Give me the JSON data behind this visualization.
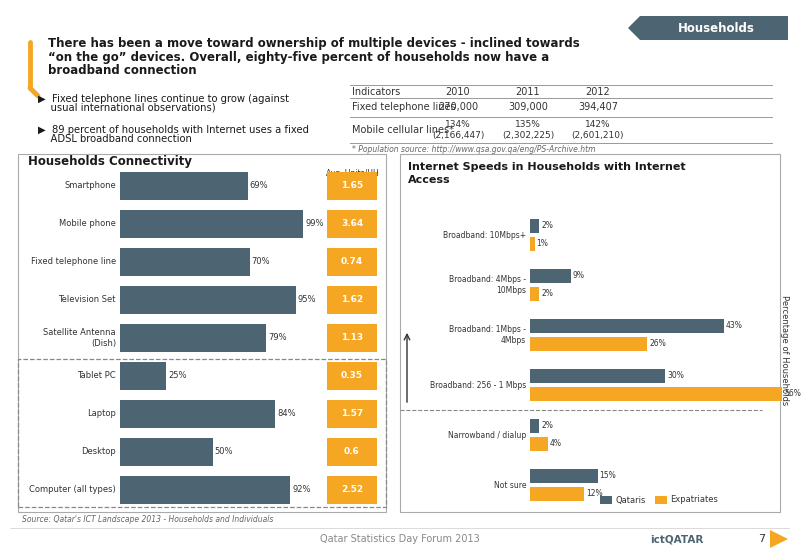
{
  "header_tab": "Households",
  "title_line1": "There has been a move toward ownership of multiple devices - inclined towards",
  "title_line2": "“on the go” devices. Overall, eighty-five percent of households now have a",
  "title_line3": "broadband connection",
  "bullet1_line1": "▶  Fixed telephone lines continue to grow (against",
  "bullet1_line2": "    usual international observations)",
  "bullet2_line1": "▶  89 percent of households with Internet uses a fixed",
  "bullet2_line2": "    ADSL broadband connection",
  "table_headers": [
    "Indicators",
    "2010",
    "2011",
    "2012"
  ],
  "table_row1": [
    "Fixed telephone lines",
    "270,000",
    "309,000",
    "394,407"
  ],
  "table_row2_label": "Mobile cellular lines*",
  "table_row2_vals": [
    "134%\n(2,166,447)",
    "135%\n(2,302,225)",
    "142%\n(2,601,210)"
  ],
  "table_footnote": "* Population source: http://www.qsa.gov.qa/eng/PS-Archive.htm",
  "left_chart_title": "Households Connectivity",
  "left_categories": [
    "Computer (all types)",
    "Desktop",
    "Laptop",
    "Tablet PC",
    "Satellite Antenna\n(Dish)",
    "Television Set",
    "Fixed telephone line",
    "Mobile phone",
    "Smartphone"
  ],
  "left_values": [
    92,
    50,
    84,
    25,
    79,
    95,
    70,
    99,
    69
  ],
  "left_labels": [
    "92%",
    "50%",
    "84%",
    "25%",
    "79%",
    "95%",
    "70%",
    "99%",
    "69%"
  ],
  "left_avg": [
    2.52,
    0.6,
    1.57,
    0.35,
    1.13,
    1.62,
    0.74,
    3.64,
    1.65
  ],
  "left_bar_color": "#4d6573",
  "left_avg_color": "#f5a623",
  "right_chart_title": "Internet Speeds in Households with Internet\nAccess",
  "right_categories": [
    "Not sure",
    "Narrowband / dialup",
    "Broadband: 256 - 1 Mbps",
    "Broadband: 1Mbps -\n4Mbps",
    "Broadband: 4Mbps -\n10Mbps",
    "Broadband: 10Mbps+"
  ],
  "right_qataris": [
    15,
    2,
    30,
    43,
    9,
    2
  ],
  "right_expatriates": [
    12,
    4,
    56,
    26,
    2,
    1
  ],
  "qataris_color": "#4d6573",
  "expatriates_color": "#f5a623",
  "source_text": "Source: Qatar's ICT Landscape 2013 - Households and Individuals",
  "footer_center": "Qatar Statistics Day Forum 2013",
  "footer_right": "ictQATAR",
  "footer_page": "7",
  "bg_color": "#ffffff"
}
